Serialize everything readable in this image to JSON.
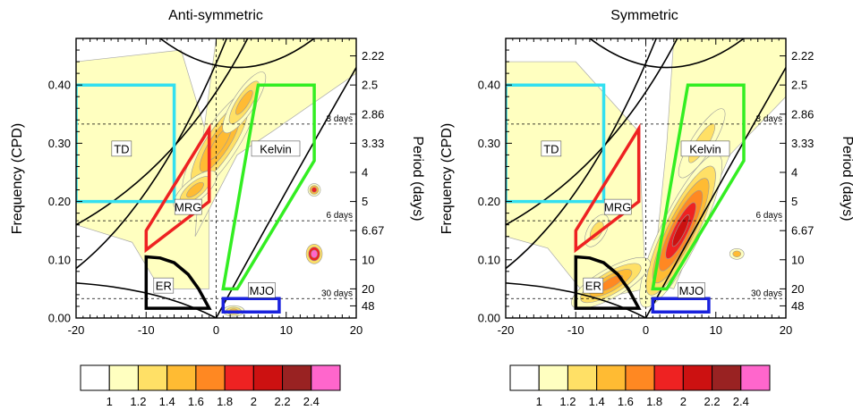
{
  "chart_data": [
    {
      "type": "heatmap",
      "title": "Anti-symmetric",
      "xlabel": "",
      "ylabel": "Frequency (CPD)",
      "ylabel_right": "Period (days)",
      "xlim": [
        -20,
        20
      ],
      "ylim": [
        0,
        0.48
      ],
      "xticks": [
        "-20",
        "-10",
        "0",
        "10",
        "20"
      ],
      "yticks": [
        "0.00",
        "0.10",
        "0.20",
        "0.30",
        "0.40"
      ],
      "period_ticks": [
        {
          "label": "2.22",
          "freq": 0.45
        },
        {
          "label": "2.5",
          "freq": 0.4
        },
        {
          "label": "2.86",
          "freq": 0.35
        },
        {
          "label": "3.33",
          "freq": 0.3
        },
        {
          "label": "4",
          "freq": 0.25
        },
        {
          "label": "5",
          "freq": 0.2
        },
        {
          "label": "6.67",
          "freq": 0.15
        },
        {
          "label": "10",
          "freq": 0.1
        },
        {
          "label": "20",
          "freq": 0.05
        },
        {
          "label": "48",
          "freq": 0.0208
        }
      ],
      "reference_lines": [
        {
          "label": "3 days",
          "freq": 0.333
        },
        {
          "label": "6 days",
          "freq": 0.167
        },
        {
          "label": "30 days",
          "freq": 0.0333
        }
      ],
      "filter_boxes": [
        {
          "label": "TD",
          "color": "#33e0f0",
          "points": [
            [
              -20,
              0.2
            ],
            [
              -6,
              0.2
            ],
            [
              -6,
              0.4
            ],
            [
              -20,
              0.4
            ]
          ]
        },
        {
          "label": "MRG",
          "color": "#ee2222",
          "points": [
            [
              -10,
              0.117
            ],
            [
              -10,
              0.15
            ],
            [
              -1,
              0.325
            ],
            [
              -1,
              0.2
            ]
          ]
        },
        {
          "label": "Kelvin",
          "color": "#33ee22",
          "points": [
            [
              1,
              0.05
            ],
            [
              3,
              0.05
            ],
            [
              14,
              0.27
            ],
            [
              14,
              0.4
            ],
            [
              6,
              0.4
            ]
          ]
        },
        {
          "label": "ER",
          "color": "#000000",
          "points": [
            [
              -10,
              0.0167
            ],
            [
              -1,
              0.0167
            ],
            [
              -2.5,
              0.05
            ],
            [
              -4,
              0.075
            ],
            [
              -6,
              0.095
            ],
            [
              -8,
              0.103
            ],
            [
              -10,
              0.105
            ]
          ]
        },
        {
          "label": "MJO",
          "color": "#1a22dd",
          "points": [
            [
              1,
              0.0104
            ],
            [
              9,
              0.0104
            ],
            [
              9,
              0.0333
            ],
            [
              1,
              0.0333
            ]
          ]
        }
      ],
      "peak_regions": [
        {
          "name": "MRG-Kelvin band",
          "max_level": 1.6
        },
        {
          "name": "isolated peak near x=15 f=0.11",
          "max_level": 2.4
        }
      ]
    },
    {
      "type": "heatmap",
      "title": "Symmetric",
      "xlabel": "",
      "ylabel": "Frequency (CPD)",
      "ylabel_right": "Period (days)",
      "xlim": [
        -20,
        20
      ],
      "ylim": [
        0,
        0.48
      ],
      "xticks": [
        "-20",
        "-10",
        "0",
        "10",
        "20"
      ],
      "yticks": [
        "0.00",
        "0.10",
        "0.20",
        "0.30",
        "0.40"
      ],
      "period_ticks": [
        {
          "label": "2.22",
          "freq": 0.45
        },
        {
          "label": "2.5",
          "freq": 0.4
        },
        {
          "label": "2.86",
          "freq": 0.35
        },
        {
          "label": "3.33",
          "freq": 0.3
        },
        {
          "label": "4",
          "freq": 0.25
        },
        {
          "label": "5",
          "freq": 0.2
        },
        {
          "label": "6.67",
          "freq": 0.15
        },
        {
          "label": "10",
          "freq": 0.1
        },
        {
          "label": "20",
          "freq": 0.05
        },
        {
          "label": "48",
          "freq": 0.0208
        }
      ],
      "reference_lines": [
        {
          "label": "3 days",
          "freq": 0.333
        },
        {
          "label": "6 days",
          "freq": 0.167
        },
        {
          "label": "30 days",
          "freq": 0.0333
        }
      ],
      "filter_boxes": [
        {
          "label": "TD",
          "color": "#33e0f0",
          "points": [
            [
              -20,
              0.2
            ],
            [
              -6,
              0.2
            ],
            [
              -6,
              0.4
            ],
            [
              -20,
              0.4
            ]
          ]
        },
        {
          "label": "MRG",
          "color": "#ee2222",
          "points": [
            [
              -10,
              0.117
            ],
            [
              -10,
              0.15
            ],
            [
              -1,
              0.325
            ],
            [
              -1,
              0.2
            ]
          ]
        },
        {
          "label": "Kelvin",
          "color": "#33ee22",
          "points": [
            [
              1,
              0.05
            ],
            [
              3,
              0.05
            ],
            [
              14,
              0.27
            ],
            [
              14,
              0.4
            ],
            [
              6,
              0.4
            ]
          ]
        },
        {
          "label": "ER",
          "color": "#000000",
          "points": [
            [
              -10,
              0.0167
            ],
            [
              -1,
              0.0167
            ],
            [
              -2.5,
              0.05
            ],
            [
              -4,
              0.075
            ],
            [
              -6,
              0.095
            ],
            [
              -8,
              0.103
            ],
            [
              -10,
              0.105
            ]
          ]
        },
        {
          "label": "MJO",
          "color": "#1a22dd",
          "points": [
            [
              1,
              0.0104
            ],
            [
              9,
              0.0104
            ],
            [
              9,
              0.0333
            ],
            [
              1,
              0.0333
            ]
          ]
        }
      ],
      "peak_regions": [
        {
          "name": "Kelvin band",
          "max_level": 2.2
        },
        {
          "name": "ER band",
          "max_level": 1.8
        }
      ]
    }
  ],
  "colorbar": {
    "levels": [
      "1",
      "1.2",
      "1.4",
      "1.6",
      "1.8",
      "2",
      "2.2",
      "2.4"
    ],
    "colors": [
      "#ffffff",
      "#ffffc0",
      "#ffe066",
      "#ffbb33",
      "#ff8822",
      "#ee2222",
      "#cc1111",
      "#992222",
      "#ff66cc"
    ]
  }
}
